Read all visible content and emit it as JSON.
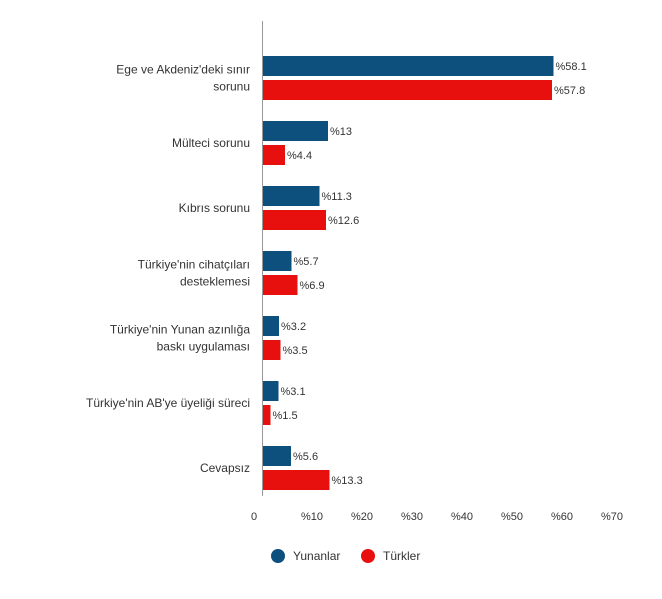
{
  "chart_data": {
    "type": "bar",
    "orientation": "horizontal",
    "categories": [
      "Ege ve Akdeniz'deki sınır sorunu",
      "Mülteci sorunu",
      "Kıbrıs sorunu",
      "Türkiye'nin cihatçıları desteklemesi",
      "Türkiye'nin Yunan azınlığa baskı uygulaması",
      "Türkiye'nin AB'ye üyeliği süreci",
      "Cevapsız"
    ],
    "category_lines": [
      [
        "Ege ve Akdeniz'deki sınır",
        "sorunu"
      ],
      [
        "Mülteci sorunu"
      ],
      [
        "Kıbrıs sorunu"
      ],
      [
        "Türkiye'nin cihatçıları",
        "desteklemesi"
      ],
      [
        "Türkiye'nin Yunan azınlığa",
        "baskı uygulaması"
      ],
      [
        "Türkiye'nin AB'ye üyeliği süreci"
      ],
      [
        "Cevapsız"
      ]
    ],
    "series": [
      {
        "name": "Yunanlar",
        "color": "#0d4f7d",
        "values": [
          58.1,
          13,
          11.3,
          5.7,
          3.2,
          3.1,
          5.6
        ],
        "labels": [
          "%58.1",
          "%13",
          "%11.3",
          "%5.7",
          "%3.2",
          "%3.1",
          "%5.6"
        ]
      },
      {
        "name": "Türkler",
        "color": "#e8100e",
        "values": [
          57.8,
          4.4,
          12.6,
          6.9,
          3.5,
          1.5,
          13.3
        ],
        "labels": [
          "%57.8",
          "%4.4",
          "%12.6",
          "%6.9",
          "%3.5",
          "%1.5",
          "%13.3"
        ]
      }
    ],
    "xlim": [
      0,
      70
    ],
    "x_ticks": [
      0,
      10,
      20,
      30,
      40,
      50,
      60,
      70
    ],
    "x_tick_labels": [
      "0",
      "%10",
      "%20",
      "%30",
      "%40",
      "%50",
      "%60",
      "%70"
    ],
    "grid": false,
    "legend": "bottom-center",
    "title": "",
    "xlabel": "",
    "ylabel": ""
  }
}
